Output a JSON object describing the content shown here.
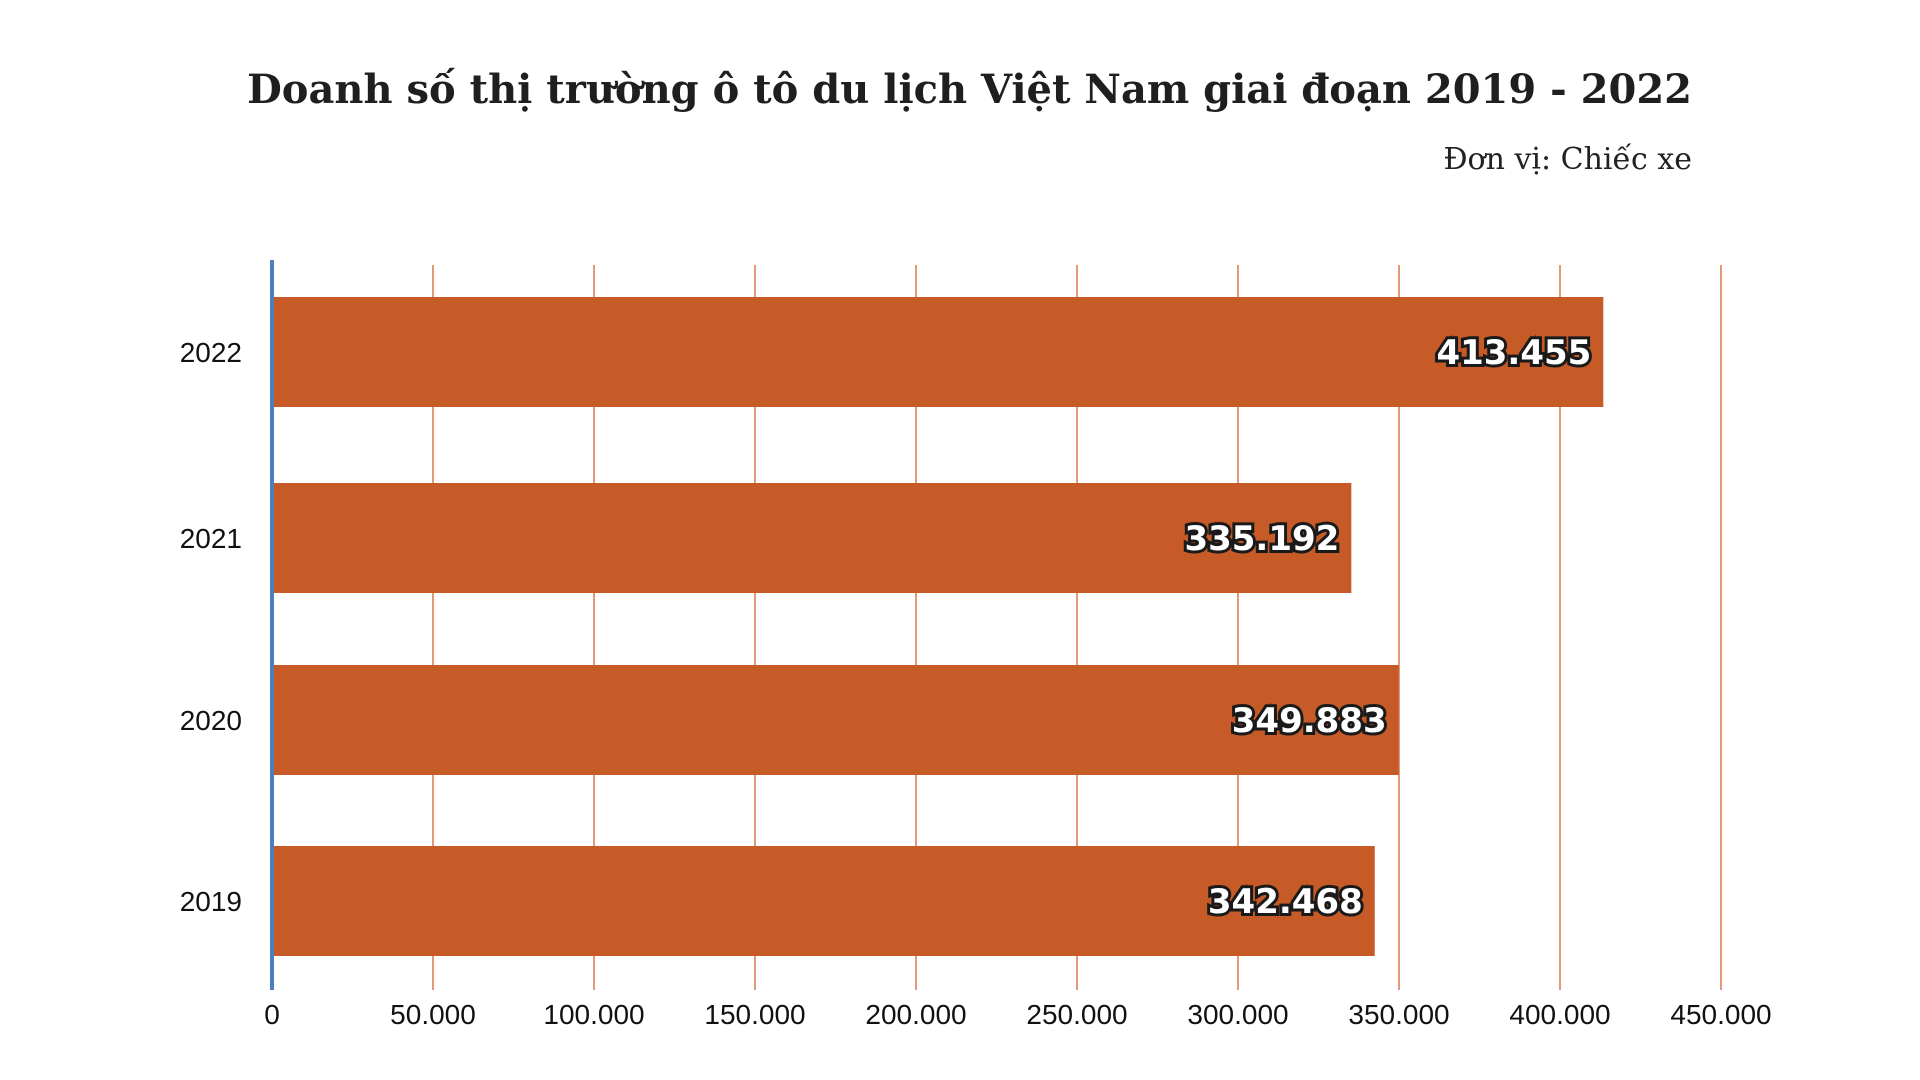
{
  "header": {
    "title": "Doanh số thị trường ô tô du lịch Việt Nam giai đoạn 2019 - 2022",
    "unit": "Đơn vị: Chiếc xe"
  },
  "colors": {
    "bar": "#c65b28",
    "grid": "#d9784f",
    "axis": "#4a7fc1"
  },
  "chart_data": {
    "type": "bar",
    "orientation": "horizontal",
    "title": "Doanh số thị trường ô tô du lịch Việt Nam giai đoạn 2019 - 2022",
    "subtitle": "Đơn vị: Chiếc xe",
    "categories": [
      "2022",
      "2021",
      "2020",
      "2019"
    ],
    "values": [
      413455,
      335192,
      349883,
      342468
    ],
    "value_labels": [
      "413.455",
      "335.192",
      "349.883",
      "342.468"
    ],
    "xlim": [
      0,
      450000
    ],
    "x_ticks": [
      0,
      50000,
      100000,
      150000,
      200000,
      250000,
      300000,
      350000,
      400000,
      450000
    ],
    "x_tick_labels": [
      "0",
      "50.000",
      "100.000",
      "150.000",
      "200.000",
      "250.000",
      "300.000",
      "350.000",
      "400.000",
      "450.000"
    ],
    "grid": true,
    "legend": "none"
  }
}
